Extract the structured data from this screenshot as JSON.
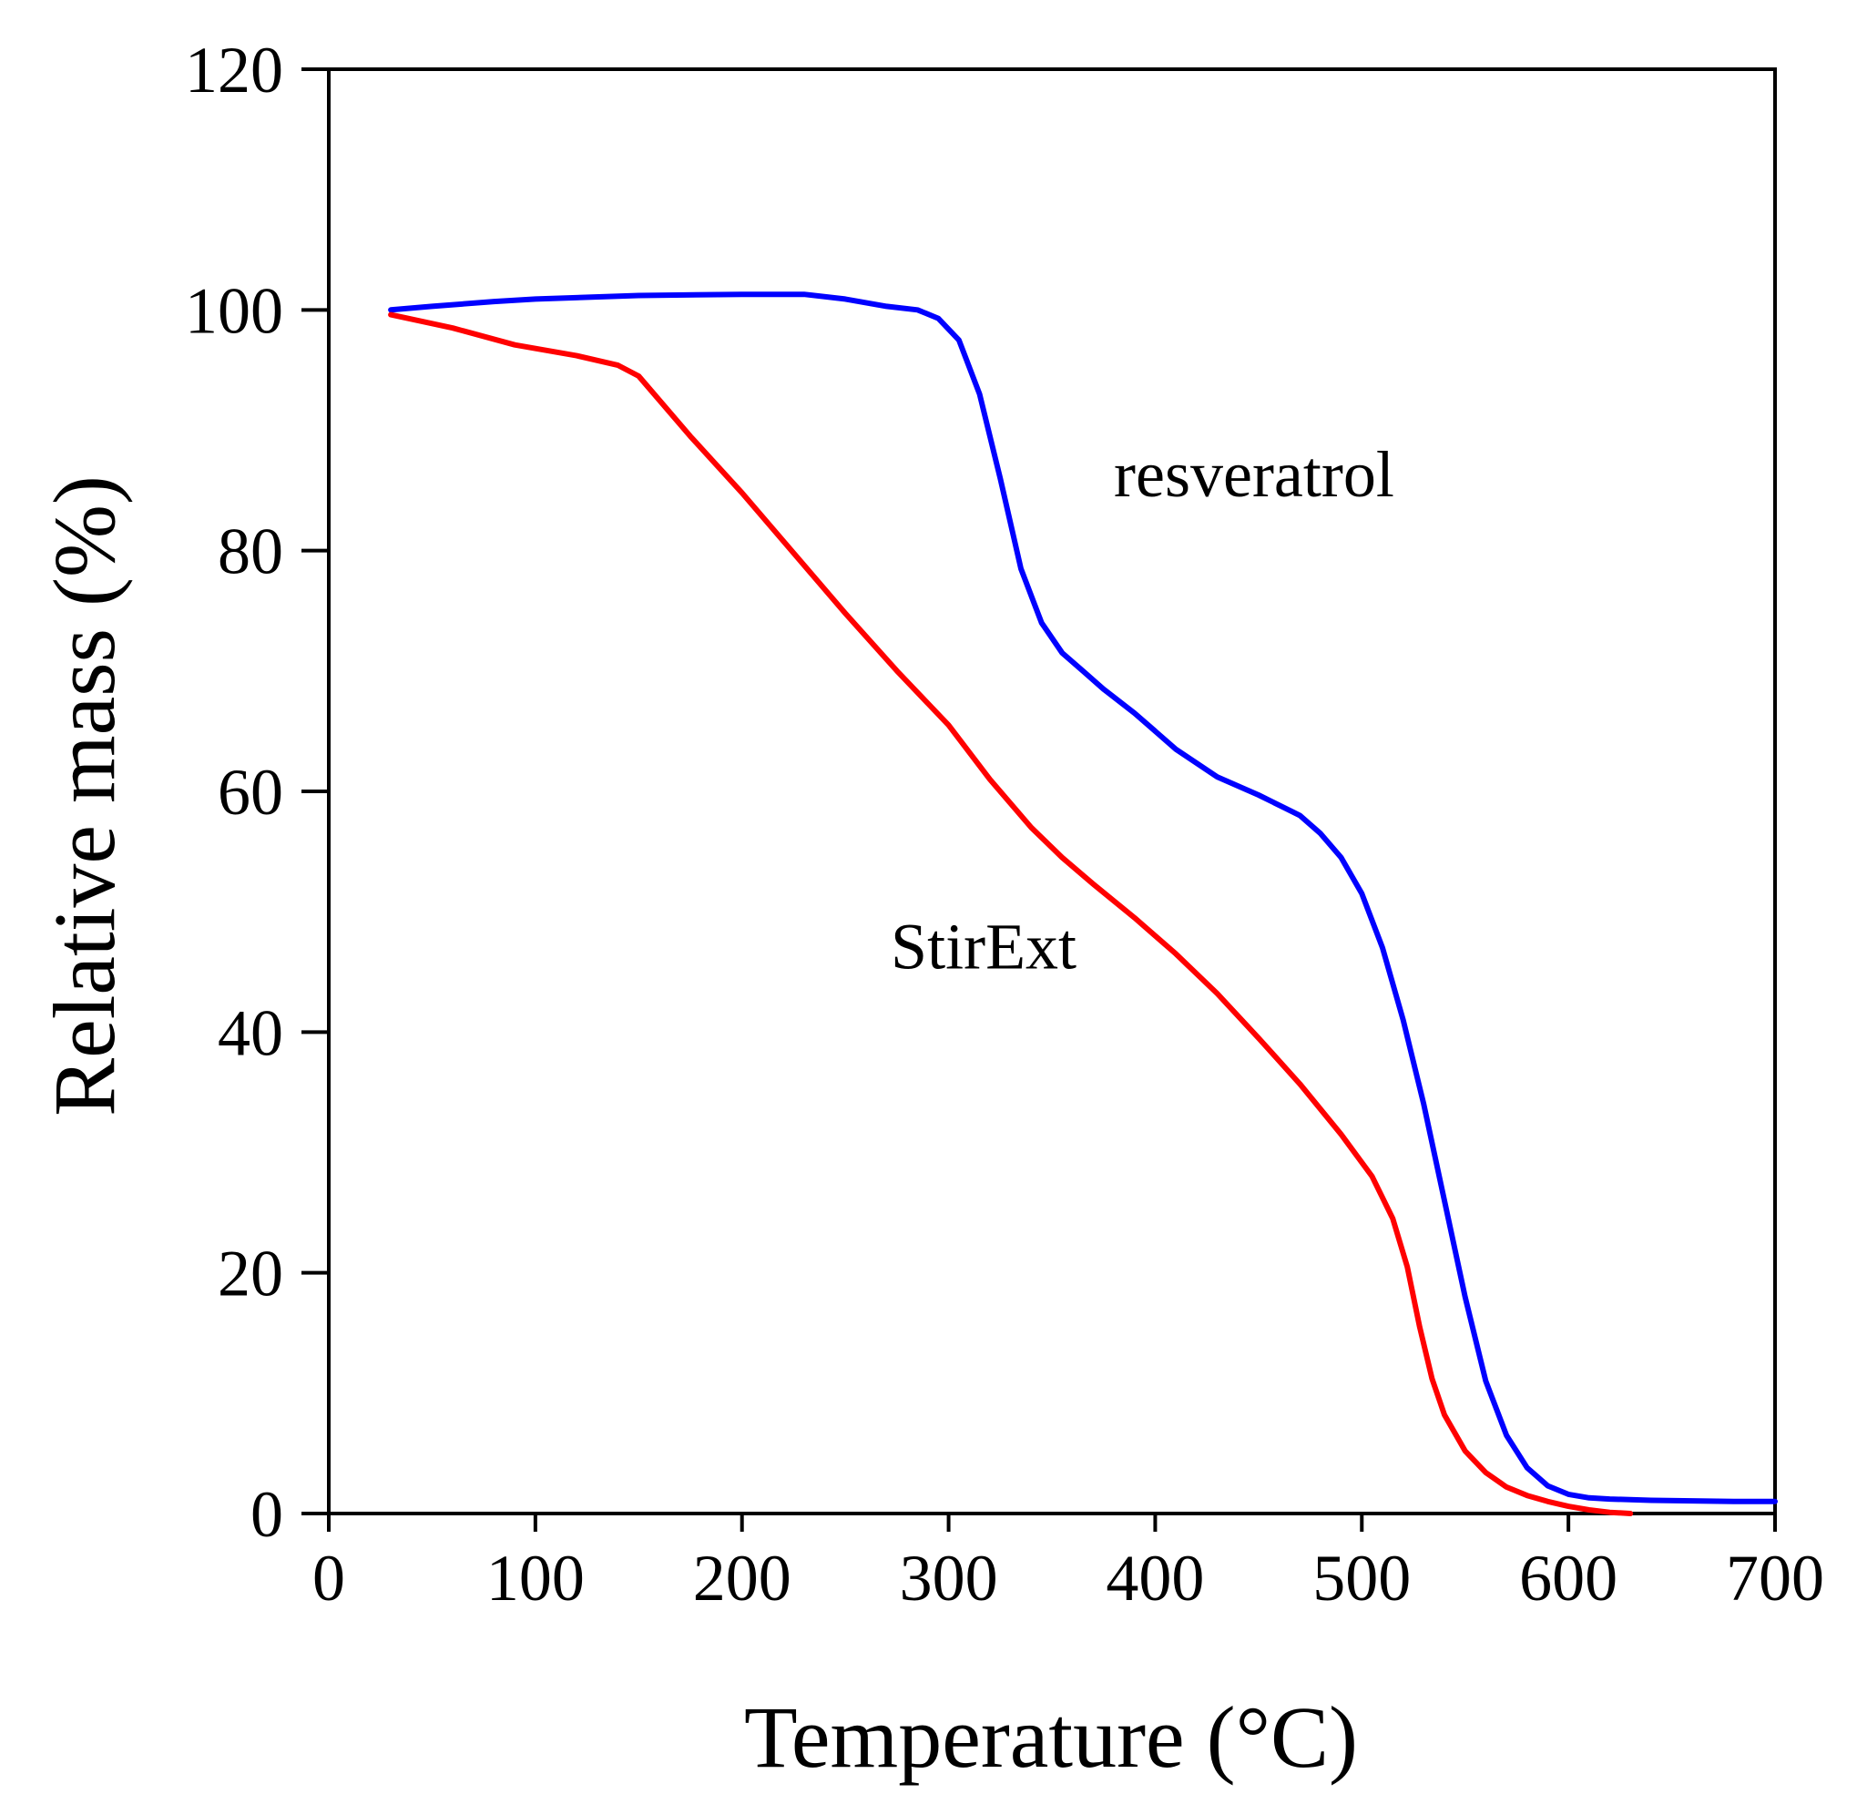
{
  "chart_data": {
    "type": "line",
    "title": "",
    "xlabel": "Temperature (°C)",
    "ylabel": "Relative mass (%)",
    "xlim": [
      0,
      700
    ],
    "ylim": [
      0,
      120
    ],
    "xticks": [
      0,
      100,
      200,
      300,
      400,
      500,
      600,
      700
    ],
    "yticks": [
      0,
      20,
      40,
      60,
      80,
      100,
      120
    ],
    "grid": false,
    "legend": "none",
    "series": [
      {
        "name": "resveratrol",
        "color": "#0000ff",
        "x": [
          30,
          50,
          80,
          100,
          150,
          200,
          230,
          250,
          270,
          285,
          295,
          305,
          315,
          325,
          335,
          345,
          355,
          365,
          375,
          390,
          410,
          430,
          450,
          470,
          480,
          490,
          500,
          510,
          520,
          530,
          540,
          550,
          560,
          570,
          580,
          590,
          600,
          610,
          620,
          640,
          660,
          680,
          700
        ],
        "y": [
          100,
          100.3,
          100.7,
          100.9,
          101.2,
          101.3,
          101.3,
          100.9,
          100.3,
          100,
          99.3,
          97.5,
          93,
          86,
          78.5,
          74,
          71.5,
          70,
          68.5,
          66.5,
          63.5,
          61.2,
          59.7,
          58,
          56.5,
          54.5,
          51.5,
          47,
          41,
          34,
          26,
          18,
          11,
          6.5,
          3.8,
          2.3,
          1.6,
          1.3,
          1.2,
          1.1,
          1.05,
          1.0,
          1.0
        ]
      },
      {
        "name": "StirExt",
        "color": "#ff0000",
        "x": [
          30,
          60,
          90,
          120,
          140,
          150,
          175,
          200,
          225,
          250,
          275,
          300,
          320,
          340,
          355,
          370,
          390,
          410,
          430,
          450,
          470,
          490,
          505,
          515,
          522,
          528,
          534,
          540,
          550,
          560,
          570,
          580,
          590,
          600,
          610,
          620,
          630
        ],
        "y": [
          99.6,
          98.5,
          97.1,
          96.2,
          95.4,
          94.5,
          89.5,
          84.8,
          79.8,
          74.8,
          70,
          65.5,
          61,
          57,
          54.5,
          52.3,
          49.5,
          46.5,
          43.2,
          39.5,
          35.7,
          31.5,
          28,
          24.5,
          20.5,
          15.5,
          11.2,
          8.2,
          5.2,
          3.4,
          2.2,
          1.5,
          1.0,
          0.6,
          0.3,
          0.1,
          0.0
        ]
      }
    ],
    "annotations": [
      {
        "text": "resveratrol",
        "x": 380,
        "y": 84.5,
        "color": "#000000"
      },
      {
        "text": "StirExt",
        "x": 272,
        "y": 45.3,
        "color": "#000000"
      }
    ]
  }
}
